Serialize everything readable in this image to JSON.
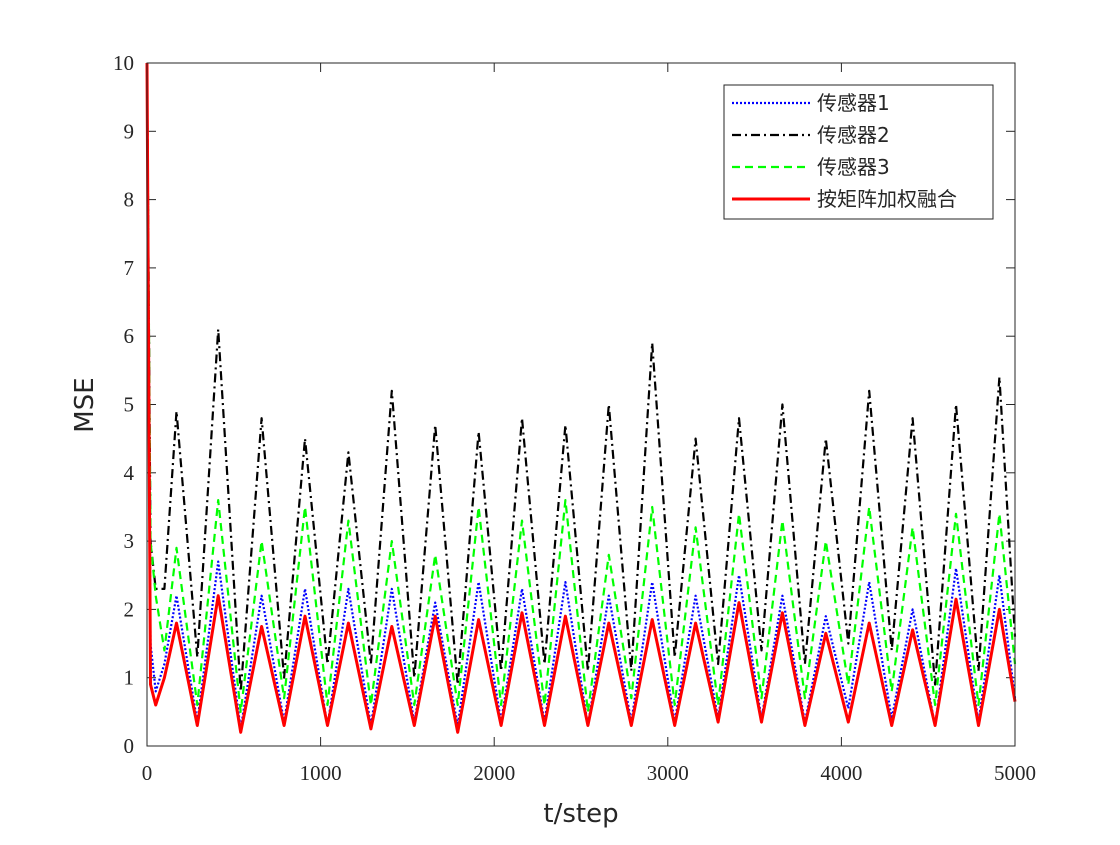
{
  "chart_data": {
    "type": "line",
    "xlabel": "t/step",
    "ylabel": "MSE",
    "xlim": [
      0,
      5000
    ],
    "ylim": [
      0,
      10
    ],
    "xticks": [
      0,
      1000,
      2000,
      3000,
      4000,
      5000
    ],
    "yticks": [
      0,
      1,
      2,
      3,
      4,
      5,
      6,
      7,
      8,
      9,
      10
    ],
    "legend": "upper right",
    "x": [
      0,
      20,
      50,
      100,
      170,
      290,
      410,
      540,
      660,
      790,
      910,
      1040,
      1160,
      1290,
      1410,
      1540,
      1660,
      1790,
      1910,
      2040,
      2160,
      2290,
      2410,
      2540,
      2660,
      2790,
      2910,
      3040,
      3160,
      3290,
      3410,
      3540,
      3660,
      3790,
      3910,
      4040,
      4160,
      4290,
      4410,
      4540,
      4660,
      4790,
      4910,
      5000
    ],
    "series": [
      {
        "name": "传感器1",
        "color": "#0000ff",
        "linestyle": "dotted",
        "values": [
          10,
          1.5,
          0.8,
          1.2,
          2.2,
          0.35,
          2.7,
          0.25,
          2.2,
          0.35,
          2.3,
          0.3,
          2.3,
          0.3,
          2.3,
          0.35,
          2.1,
          0.3,
          2.4,
          0.35,
          2.3,
          0.35,
          2.4,
          0.3,
          2.2,
          0.35,
          2.4,
          0.35,
          2.2,
          0.4,
          2.5,
          0.4,
          2.2,
          0.35,
          1.9,
          0.55,
          2.4,
          0.4,
          2.0,
          0.3,
          2.6,
          0.35,
          2.5,
          0.7
        ]
      },
      {
        "name": "传感器2",
        "color": "#000000",
        "linestyle": "dashdot",
        "values": [
          10,
          3,
          2.3,
          2.3,
          4.9,
          1.3,
          6.1,
          0.8,
          4.8,
          1.0,
          4.5,
          1.2,
          4.3,
          1.2,
          5.2,
          1.0,
          4.7,
          0.9,
          4.6,
          1.1,
          4.8,
          1.2,
          4.7,
          1.1,
          5.0,
          1.1,
          5.9,
          1.3,
          4.5,
          1.2,
          4.8,
          1.4,
          5.0,
          1.2,
          4.5,
          1.5,
          5.2,
          1.4,
          4.8,
          0.9,
          5.0,
          1.1,
          5.4,
          1.6
        ]
      },
      {
        "name": "传感器3",
        "color": "#00ff00",
        "linestyle": "dashed",
        "values": [
          10,
          3,
          2.2,
          1.4,
          2.9,
          0.6,
          3.6,
          0.5,
          3.0,
          0.7,
          3.5,
          0.6,
          3.3,
          0.6,
          3.0,
          0.6,
          2.8,
          0.6,
          3.5,
          0.6,
          3.3,
          0.6,
          3.6,
          0.5,
          2.8,
          0.7,
          3.5,
          0.6,
          3.2,
          0.6,
          3.4,
          0.7,
          3.3,
          0.7,
          3.0,
          0.9,
          3.5,
          0.8,
          3.2,
          0.6,
          3.4,
          0.6,
          3.4,
          1.2
        ]
      },
      {
        "name": "按矩阵加权融合",
        "color": "#ff0000",
        "linestyle": "solid",
        "values": [
          10,
          0.9,
          0.6,
          1.0,
          1.8,
          0.3,
          2.2,
          0.2,
          1.75,
          0.3,
          1.9,
          0.3,
          1.8,
          0.25,
          1.75,
          0.3,
          1.9,
          0.2,
          1.85,
          0.3,
          1.95,
          0.3,
          1.9,
          0.3,
          1.8,
          0.3,
          1.85,
          0.3,
          1.8,
          0.35,
          2.1,
          0.35,
          1.95,
          0.3,
          1.65,
          0.35,
          1.8,
          0.3,
          1.7,
          0.3,
          2.15,
          0.3,
          2.0,
          0.65
        ]
      }
    ]
  }
}
